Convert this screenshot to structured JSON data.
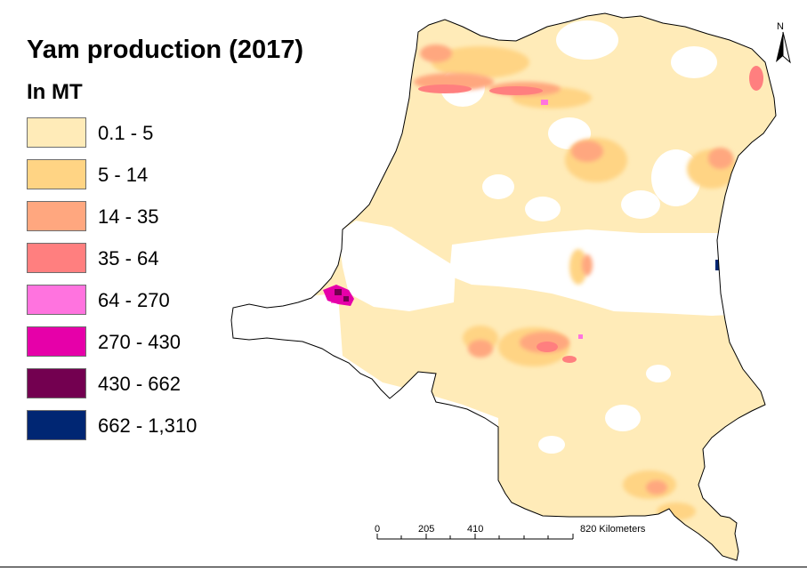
{
  "map": {
    "title": "Yam production (2017)",
    "unit": "In MT",
    "legend": [
      {
        "label": "0.1 - 5",
        "color": "#ffebb8"
      },
      {
        "label": "5 - 14",
        "color": "#ffd484"
      },
      {
        "label": "14 - 35",
        "color": "#ffa77f"
      },
      {
        "label": "35 - 64",
        "color": "#ff7f7f"
      },
      {
        "label": "64 - 270",
        "color": "#ff73df"
      },
      {
        "label": "270 - 430",
        "color": "#e600a9"
      },
      {
        "label": "430 - 662",
        "color": "#730050"
      },
      {
        "label": "662 - 1,310",
        "color": "#002673"
      }
    ],
    "scale_bar": {
      "ticks": [
        "0",
        "205",
        "410",
        "820 Kilometers"
      ]
    },
    "north_arrow": {
      "letter": "N",
      "icon": "north-arrow-icon"
    }
  }
}
